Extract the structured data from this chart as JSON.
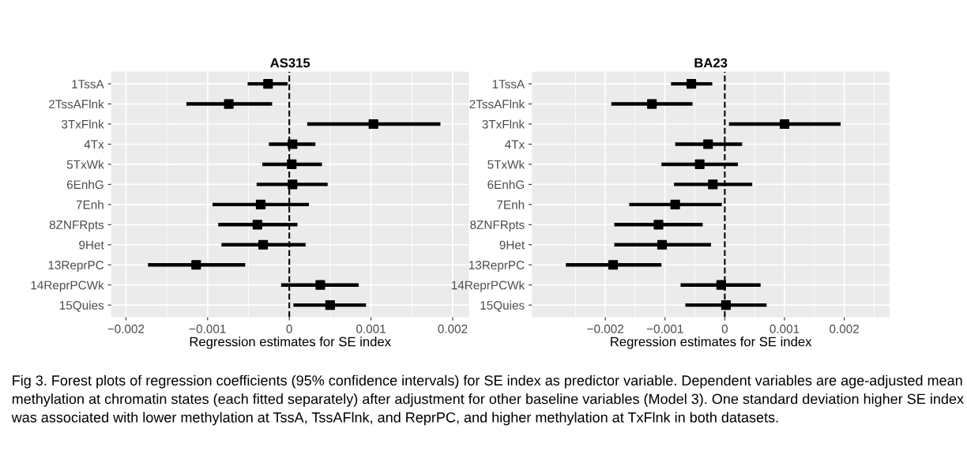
{
  "chart_data": [
    {
      "type": "scatter",
      "title": "AS315",
      "xlabel": "Regression estimates for SE index",
      "orientation": "horizontal",
      "marker": "square",
      "grid": true,
      "color": "#000000",
      "categories": [
        "1TssA",
        "2TssAFlnk",
        "3TxFlnk",
        "4Tx",
        "5TxWk",
        "6EnhG",
        "7Enh",
        "8ZNFRpts",
        "9Het",
        "13ReprPC",
        "14ReprPCWk",
        "15Quies"
      ],
      "values": [
        -0.00026,
        -0.00074,
        0.00103,
        4e-05,
        3e-05,
        4e-05,
        -0.00035,
        -0.00039,
        -0.00032,
        -0.00114,
        0.00038,
        0.0005
      ],
      "errors": [
        [
          -0.00051,
          -2e-05
        ],
        [
          -0.00126,
          -0.00021
        ],
        [
          0.00022,
          0.00185
        ],
        [
          -0.00025,
          0.00032
        ],
        [
          -0.00033,
          0.0004
        ],
        [
          -0.0004,
          0.00047
        ],
        [
          -0.00094,
          0.00024
        ],
        [
          -0.00087,
          0.0001
        ],
        [
          -0.00083,
          0.0002
        ],
        [
          -0.00173,
          -0.00054
        ],
        [
          -0.0001,
          0.00085
        ],
        [
          5e-05,
          0.00094
        ]
      ],
      "xlim": [
        -0.00218,
        0.0022
      ],
      "xticks": [
        -0.002,
        -0.001,
        0,
        0.001,
        0.002
      ],
      "ref_lines": [
        {
          "axis": "x",
          "value": 0,
          "line_style": "dashed",
          "color": "#000000"
        }
      ]
    },
    {
      "type": "scatter",
      "title": "BA23",
      "xlabel": "Regression estimates for SE index",
      "orientation": "horizontal",
      "marker": "square",
      "grid": true,
      "color": "#000000",
      "categories": [
        "1TssA",
        "2TssAFlnk",
        "3TxFlnk",
        "4Tx",
        "5TxWk",
        "6EnhG",
        "7Enh",
        "8ZNFRpts",
        "9Het",
        "13ReprPC",
        "14ReprPCWk",
        "15Quies"
      ],
      "values": [
        -0.00056,
        -0.00122,
        0.001,
        -0.00028,
        -0.00042,
        -0.0002,
        -0.00083,
        -0.00111,
        -0.00105,
        -0.00187,
        -6e-05,
        2e-05
      ],
      "errors": [
        [
          -0.0009,
          -0.00021
        ],
        [
          -0.0019,
          -0.00054
        ],
        [
          7e-05,
          0.00194
        ],
        [
          -0.00083,
          0.00029
        ],
        [
          -0.00106,
          0.00022
        ],
        [
          -0.00085,
          0.00046
        ],
        [
          -0.0016,
          -5e-05
        ],
        [
          -0.00185,
          -0.00037
        ],
        [
          -0.00185,
          -0.00023
        ],
        [
          -0.00266,
          -0.00106
        ],
        [
          -0.00074,
          0.0006
        ],
        [
          -0.00066,
          0.0007
        ]
      ],
      "xlim": [
        -0.00323,
        0.00276
      ],
      "xticks": [
        -0.002,
        -0.001,
        0,
        0.001,
        0.002
      ],
      "ref_lines": [
        {
          "axis": "x",
          "value": 0,
          "line_style": "dashed",
          "color": "#000000"
        }
      ],
      "annotations": [
        "Fig 3. Forest plots of regression coefficients (95% confidence intervals) for SE index as predictor variable. Dependent variables are age-adjusted mean methylation at chromatin states (each fitted separately) after adjustment for other baseline variables (Model 3). One standard deviation higher SE index was associated with lower methylation at TssA, TssAFlnk, and ReprPC, and higher methylation at TxFlnk in both datasets."
      ]
    }
  ]
}
